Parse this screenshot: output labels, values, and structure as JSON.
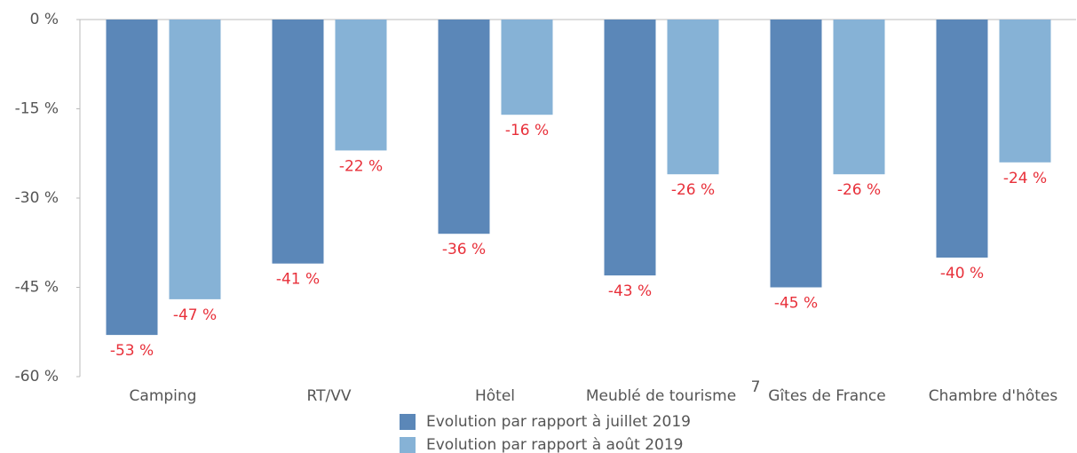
{
  "chart_data": {
    "type": "bar",
    "categories": [
      "Camping",
      "RT/VV",
      "Hôtel",
      "Meublé de tourisme",
      "Gîtes de France",
      "Chambre d'hôtes"
    ],
    "series": [
      {
        "name": "Evolution par rapport à juillet 2019",
        "color": "#5b87b8",
        "values": [
          -53,
          -41,
          -36,
          -43,
          -45,
          -40
        ],
        "value_labels": [
          "-53 %",
          "-41 %",
          "-36 %",
          "-43 %",
          "-45 %",
          "-40 %"
        ]
      },
      {
        "name": "Evolution par rapport à août 2019",
        "color": "#86b2d6",
        "values": [
          -47,
          -22,
          -16,
          -26,
          -26,
          -24
        ],
        "value_labels": [
          "-47 %",
          "-22 %",
          "-16 %",
          "-26 %",
          "-26 %",
          "-24 %"
        ]
      }
    ],
    "ylim": [
      -60,
      0
    ],
    "yticks": [
      {
        "value": 0,
        "label": "0 %"
      },
      {
        "value": -15,
        "label": "-15 %"
      },
      {
        "value": -30,
        "label": "-30 %"
      },
      {
        "value": -45,
        "label": "-45 %"
      },
      {
        "value": -60,
        "label": "-60 %"
      }
    ],
    "legend": "bottom",
    "annotation": "7"
  }
}
